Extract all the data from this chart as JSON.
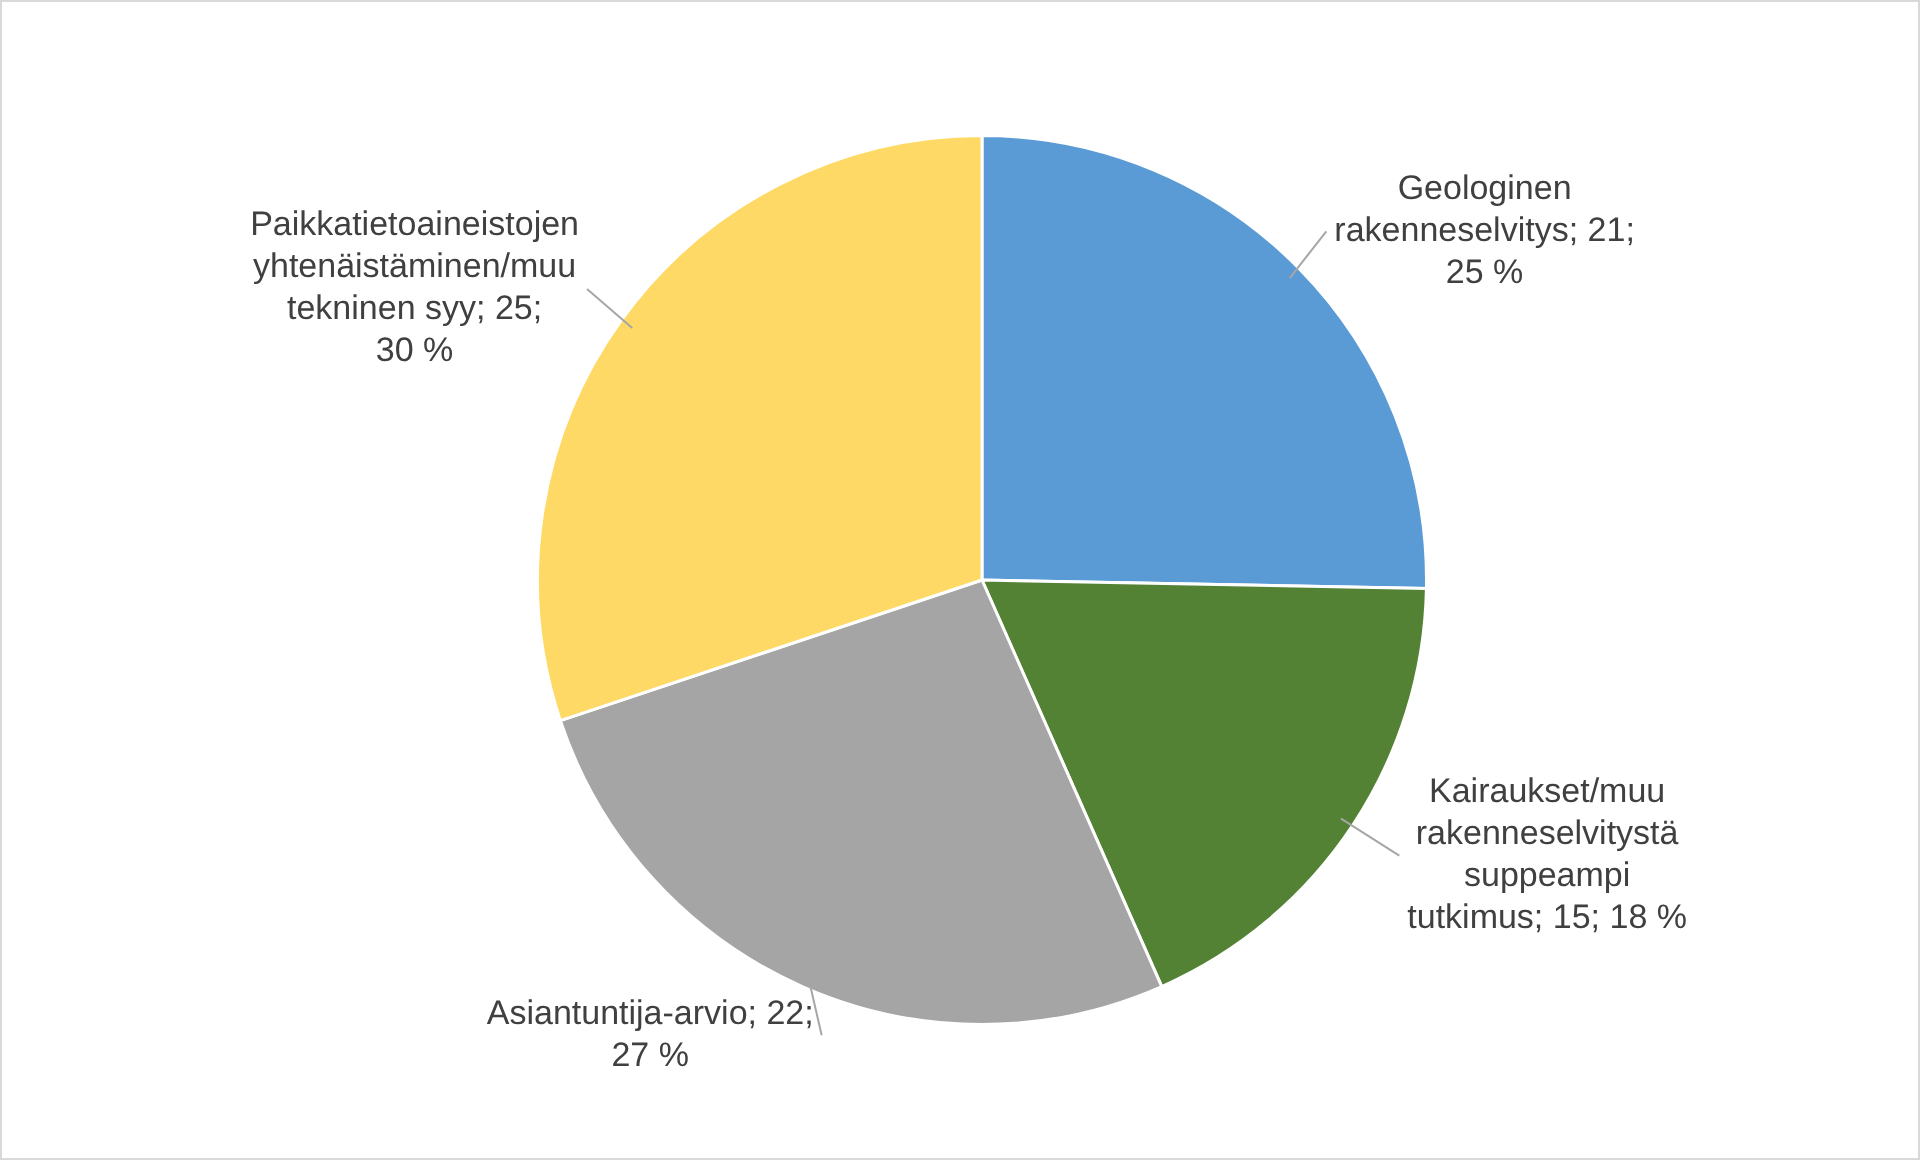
{
  "chart_data": {
    "type": "pie",
    "categories": [
      "Geologinen rakenneselvitys",
      "Kairaukset/muu rakenneselvitystä suppeampi tutkimus",
      "Asiantuntija-arvio",
      "Paikkatietoaineistojen yhtenäistäminen/muu tekninen syy"
    ],
    "values": [
      21,
      15,
      22,
      25
    ],
    "value_labels": [
      "21; 25 %",
      "15; 18 %",
      "22; 27 %",
      "25; 30 %"
    ],
    "colors": [
      "#5b9bd5",
      "#548235",
      "#a5a5a5",
      "#ffd966"
    ],
    "legend": false
  }
}
